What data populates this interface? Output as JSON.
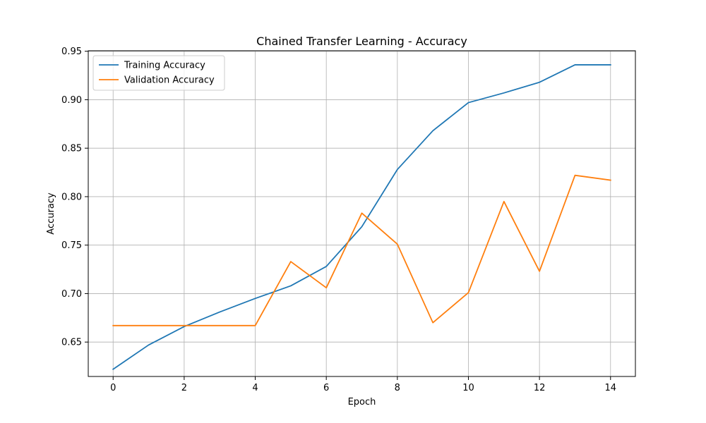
{
  "chart_data": {
    "type": "line",
    "title": "Chained Transfer Learning - Accuracy",
    "xlabel": "Epoch",
    "ylabel": "Accuracy",
    "xlim": [
      -0.7,
      14.7
    ],
    "ylim": [
      0.6145,
      0.9505
    ],
    "xticks": [
      0,
      2,
      4,
      6,
      8,
      10,
      12,
      14
    ],
    "yticks": [
      0.65,
      0.7,
      0.75,
      0.8,
      0.85,
      0.9,
      0.95
    ],
    "ytick_labels": [
      "0.65",
      "0.70",
      "0.75",
      "0.80",
      "0.85",
      "0.90",
      "0.95"
    ],
    "grid": true,
    "legend_position": "upper-left",
    "x": [
      0,
      1,
      2,
      3,
      4,
      5,
      6,
      7,
      8,
      9,
      10,
      11,
      12,
      13,
      14
    ],
    "series": [
      {
        "name": "Training Accuracy",
        "color": "#1f77b4",
        "values": [
          0.622,
          0.647,
          0.666,
          0.681,
          0.695,
          0.708,
          0.728,
          0.769,
          0.828,
          0.868,
          0.897,
          0.907,
          0.918,
          0.936,
          0.936
        ]
      },
      {
        "name": "Validation Accuracy",
        "color": "#ff7f0e",
        "values": [
          0.667,
          0.667,
          0.667,
          0.667,
          0.667,
          0.733,
          0.706,
          0.783,
          0.751,
          0.67,
          0.701,
          0.795,
          0.723,
          0.822,
          0.817
        ]
      }
    ]
  }
}
